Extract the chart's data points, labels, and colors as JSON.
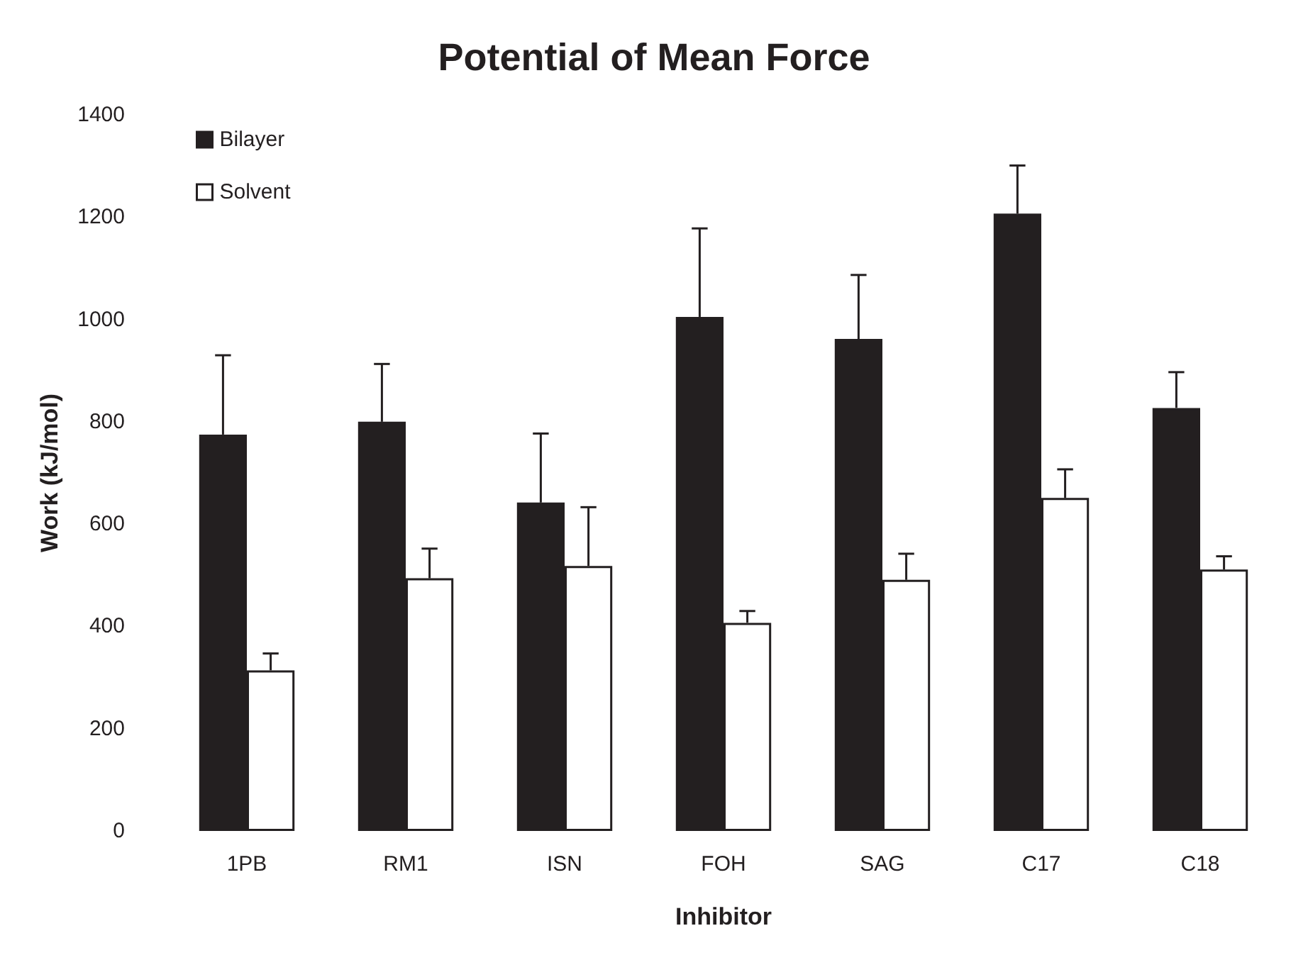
{
  "chart_data": {
    "type": "bar",
    "title": "Potential of Mean Force",
    "xlabel": "Inhibitor",
    "ylabel": "Work (kJ/mol)",
    "categories": [
      "1PB",
      "RM1",
      "ISN",
      "FOH",
      "SAG",
      "C17",
      "C18"
    ],
    "series": [
      {
        "name": "Bilayer",
        "color": "#231f20",
        "values": [
          775,
          800,
          642,
          1005,
          962,
          1207,
          827
        ],
        "errors": [
          [
            775,
            930
          ],
          [
            800,
            913
          ],
          [
            642,
            777
          ],
          [
            1005,
            1178
          ],
          [
            962,
            1087
          ],
          [
            1207,
            1301
          ],
          [
            827,
            897
          ]
        ]
      },
      {
        "name": "Solvent",
        "color": "#ffffff",
        "values": [
          314,
          494,
          518,
          407,
          491,
          651,
          511
        ],
        "errors": [
          [
            314,
            347
          ],
          [
            494,
            552
          ],
          [
            518,
            633
          ],
          [
            407,
            430
          ],
          [
            491,
            542
          ],
          [
            651,
            707
          ],
          [
            511,
            537
          ]
        ]
      }
    ],
    "ylim": [
      0,
      1400
    ],
    "yticks": [
      0,
      200,
      400,
      600,
      800,
      1000,
      1200,
      1400
    ],
    "grid": false,
    "legend": "top left"
  }
}
